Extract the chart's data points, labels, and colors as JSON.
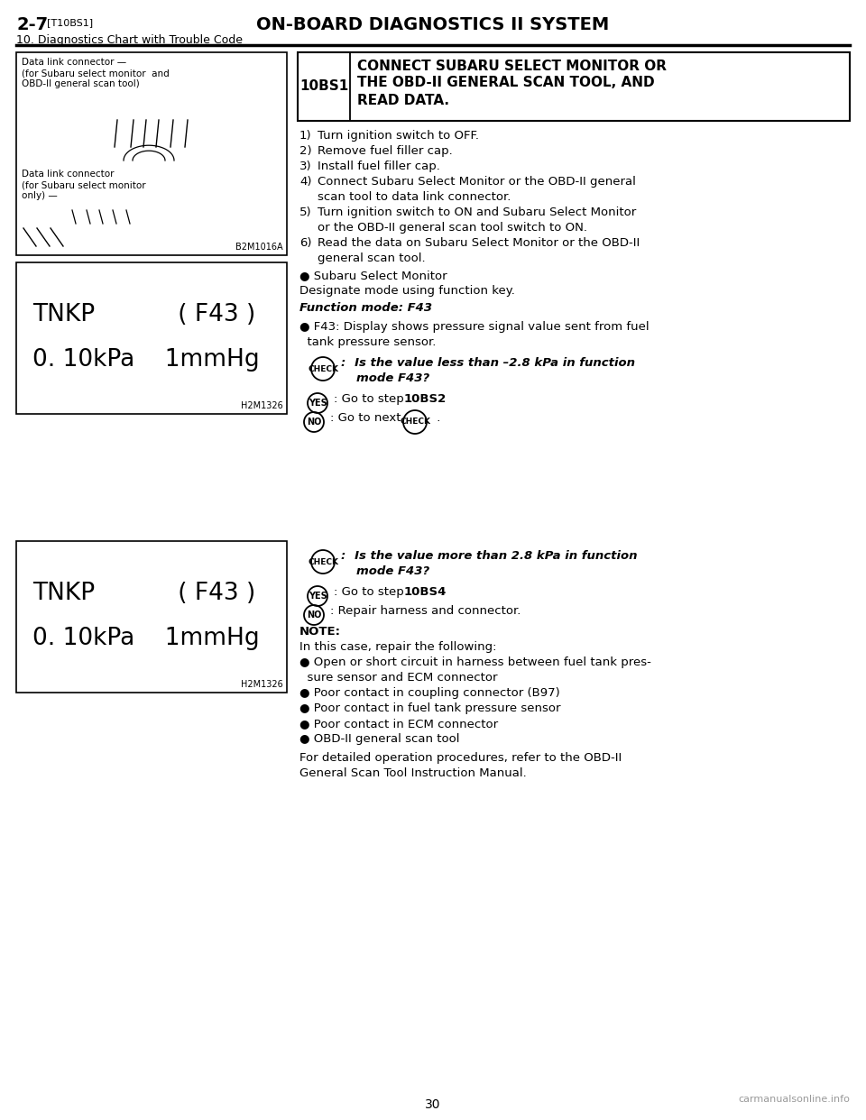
{
  "page_bg": "#ffffff",
  "header_title_left": "2-7",
  "header_tag": "[T10BS1]",
  "header_title_center": "ON-BOARD DIAGNOSTICS II SYSTEM",
  "header_subtitle": "10. Diagnostics Chart with Trouble Code",
  "page_number": "30",
  "watermark": "carmanualsonline.info",
  "step_box_label": "10BS1",
  "step_box_text_line1": "CONNECT SUBARU SELECT MONITOR OR",
  "step_box_text_line2": "THE OBD-II GENERAL SCAN TOOL, AND",
  "step_box_text_line3": "READ DATA.",
  "display_line1": "TNKP           ( F43 )",
  "display_line2": "0. 10kPa    1mmHg",
  "display_label": "H2M1326",
  "img_label1": "B2M1016A",
  "img_caption1_l1": "Data link connector —",
  "img_caption1_l2": "(for Subaru select monitor  and",
  "img_caption1_l3": "OBD-II general scan tool)",
  "img_caption2_l1": "Data link connector",
  "img_caption2_l2": "(for Subaru select monitor",
  "img_caption2_l3": "only) —"
}
